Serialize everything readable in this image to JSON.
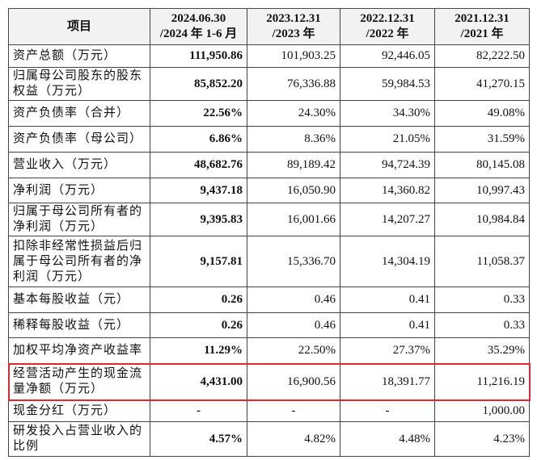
{
  "table": {
    "header": [
      [
        "项目"
      ],
      [
        "2024.06.30",
        "/2024 年 1-6 月"
      ],
      [
        "2023.12.31",
        "/2023 年"
      ],
      [
        "2022.12.31",
        "/2022 年"
      ],
      [
        "2021.12.31",
        "/2021 年"
      ]
    ],
    "rows": [
      [
        "资产总额（万元）",
        "111,950.86",
        "101,903.25",
        "92,446.05",
        "82,222.50"
      ],
      [
        "归属母公司股东的股东权益（万元）",
        "85,852.20",
        "76,336.88",
        "59,984.53",
        "41,270.15"
      ],
      [
        "资产负债率（合并）",
        "22.56%",
        "24.30%",
        "34.30%",
        "49.08%"
      ],
      [
        "资产负债率（母公司）",
        "6.86%",
        "8.36%",
        "21.05%",
        "31.59%"
      ],
      [
        "营业收入（万元）",
        "48,682.76",
        "89,189.42",
        "94,724.39",
        "80,145.08"
      ],
      [
        "净利润（万元）",
        "9,437.18",
        "16,050.90",
        "14,360.82",
        "10,997.43"
      ],
      [
        "归属于母公司所有者的净利润（万元）",
        "9,395.83",
        "16,001.66",
        "14,207.27",
        "10,984.84"
      ],
      [
        "扣除非经常性损益后归属于母公司所有者的净利润（万元）",
        "9,157.81",
        "15,336.70",
        "14,304.19",
        "11,058.37"
      ],
      [
        "基本每股收益（元）",
        "0.26",
        "0.46",
        "0.41",
        "0.33"
      ],
      [
        "稀释每股收益（元）",
        "0.26",
        "0.46",
        "0.41",
        "0.33"
      ],
      [
        "加权平均净资产收益率",
        "11.29%",
        "22.50%",
        "27.37%",
        "35.29%"
      ],
      [
        "经营活动产生的现金流量净额（万元）",
        "4,431.00",
        "16,900.56",
        "18,391.77",
        "11,216.19"
      ],
      [
        "现金分红（万元）",
        "-",
        "-",
        "-",
        "1,000.00"
      ],
      [
        "研发投入占营业收入的比例",
        "4.57%",
        "4.82%",
        "4.48%",
        "4.23%"
      ]
    ]
  }
}
